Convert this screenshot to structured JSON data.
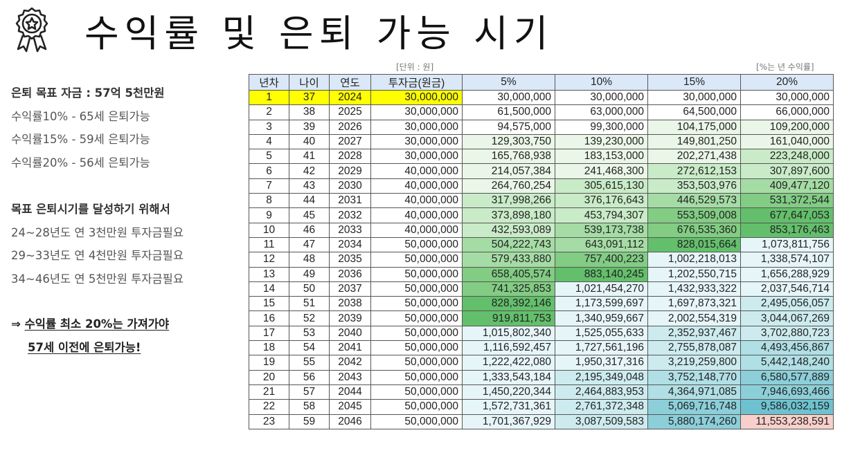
{
  "title": "수익률 및 은퇴 가능 시기",
  "left": {
    "goal": "은퇴 목표 자금 : 57억 5천만원",
    "cases": [
      "수익률10% - 65세 은퇴가능",
      "수익률15% - 59세  은퇴가능",
      "수익률20% - 56세 은퇴가능"
    ],
    "plan_head": "목표 은퇴시기를 달성하기 위해서",
    "plans": [
      "24~28년도  연 3천만원 투자금필요",
      "29~33년도  연 4천만원 투자금필요",
      "34~46년도 연 5천만원 투자금필요"
    ],
    "conclusion_arrow": "⇒ ",
    "conclusion_line1": "수익률 최소 20%는 가져가야",
    "conclusion_line2": "57세 이전에 은퇴가능!"
  },
  "notes": {
    "unit": "[단위 : 원]",
    "rate": "[%는 년 수익률]"
  },
  "table": {
    "headers": [
      "년차",
      "나이",
      "연도",
      "투자금(원금)",
      "5%",
      "10%",
      "15%",
      "20%"
    ],
    "rows": [
      [
        "1",
        "37",
        "2024",
        "30,000,000",
        "30,000,000",
        "30,000,000",
        "30,000,000",
        "30,000,000"
      ],
      [
        "2",
        "38",
        "2025",
        "30,000,000",
        "61,500,000",
        "63,000,000",
        "64,500,000",
        "66,000,000"
      ],
      [
        "3",
        "39",
        "2026",
        "30,000,000",
        "94,575,000",
        "99,300,000",
        "104,175,000",
        "109,200,000"
      ],
      [
        "4",
        "40",
        "2027",
        "30,000,000",
        "129,303,750",
        "139,230,000",
        "149,801,250",
        "161,040,000"
      ],
      [
        "5",
        "41",
        "2028",
        "30,000,000",
        "165,768,938",
        "183,153,000",
        "202,271,438",
        "223,248,000"
      ],
      [
        "6",
        "42",
        "2029",
        "40,000,000",
        "214,057,384",
        "241,468,300",
        "272,612,153",
        "307,897,600"
      ],
      [
        "7",
        "43",
        "2030",
        "40,000,000",
        "264,760,254",
        "305,615,130",
        "353,503,976",
        "409,477,120"
      ],
      [
        "8",
        "44",
        "2031",
        "40,000,000",
        "317,998,266",
        "376,176,643",
        "446,529,573",
        "531,372,544"
      ],
      [
        "9",
        "45",
        "2032",
        "40,000,000",
        "373,898,180",
        "453,794,307",
        "553,509,008",
        "677,647,053"
      ],
      [
        "10",
        "46",
        "2033",
        "40,000,000",
        "432,593,089",
        "539,173,738",
        "676,535,360",
        "853,176,463"
      ],
      [
        "11",
        "47",
        "2034",
        "50,000,000",
        "504,222,743",
        "643,091,112",
        "828,015,664",
        "1,073,811,756"
      ],
      [
        "12",
        "48",
        "2035",
        "50,000,000",
        "579,433,880",
        "757,400,223",
        "1,002,218,013",
        "1,338,574,107"
      ],
      [
        "13",
        "49",
        "2036",
        "50,000,000",
        "658,405,574",
        "883,140,245",
        "1,202,550,715",
        "1,656,288,929"
      ],
      [
        "14",
        "50",
        "2037",
        "50,000,000",
        "741,325,853",
        "1,021,454,270",
        "1,432,933,322",
        "2,037,546,714"
      ],
      [
        "15",
        "51",
        "2038",
        "50,000,000",
        "828,392,146",
        "1,173,599,697",
        "1,697,873,321",
        "2,495,056,057"
      ],
      [
        "16",
        "52",
        "2039",
        "50,000,000",
        "919,811,753",
        "1,340,959,667",
        "2,002,554,319",
        "3,044,067,269"
      ],
      [
        "17",
        "53",
        "2040",
        "50,000,000",
        "1,015,802,340",
        "1,525,055,633",
        "2,352,937,467",
        "3,702,880,723"
      ],
      [
        "18",
        "54",
        "2041",
        "50,000,000",
        "1,116,592,457",
        "1,727,561,196",
        "2,755,878,087",
        "4,493,456,867"
      ],
      [
        "19",
        "55",
        "2042",
        "50,000,000",
        "1,222,422,080",
        "1,950,317,316",
        "3,219,259,800",
        "5,442,148,240"
      ],
      [
        "20",
        "56",
        "2043",
        "50,000,000",
        "1,333,543,184",
        "2,195,349,048",
        "3,752,148,770",
        "6,580,577,889"
      ],
      [
        "21",
        "57",
        "2044",
        "50,000,000",
        "1,450,220,344",
        "2,464,883,953",
        "4,364,971,085",
        "7,946,693,466"
      ],
      [
        "22",
        "58",
        "2045",
        "50,000,000",
        "1,572,731,361",
        "2,761,372,348",
        "5,069,716,748",
        "9,586,032,159"
      ],
      [
        "23",
        "59",
        "2046",
        "50,000,000",
        "1,701,367,929",
        "3,087,509,583",
        "5,880,174,260",
        "11,553,238,591"
      ]
    ],
    "fills": [
      [
        "yellow",
        "yellow",
        "yellow",
        "yellow",
        "",
        "",
        "",
        ""
      ],
      [
        "",
        "",
        "",
        "",
        "",
        "",
        "",
        ""
      ],
      [
        "",
        "",
        "",
        "",
        "",
        "",
        "g1",
        "g1"
      ],
      [
        "",
        "",
        "",
        "",
        "g1",
        "g1",
        "g1",
        "g1"
      ],
      [
        "",
        "",
        "",
        "",
        "g1",
        "g1",
        "g1",
        "g2"
      ],
      [
        "",
        "",
        "",
        "",
        "g1",
        "g1",
        "g2",
        "g2"
      ],
      [
        "",
        "",
        "",
        "",
        "g1",
        "g2",
        "g2",
        "g3"
      ],
      [
        "",
        "",
        "",
        "",
        "g2",
        "g2",
        "g3",
        "g4"
      ],
      [
        "",
        "",
        "",
        "",
        "g2",
        "g2",
        "g4",
        "g5"
      ],
      [
        "",
        "",
        "",
        "",
        "g2",
        "g3",
        "g4",
        "g5"
      ],
      [
        "",
        "",
        "",
        "",
        "g3",
        "g3",
        "g5",
        "t1"
      ],
      [
        "",
        "",
        "",
        "",
        "g3",
        "g4",
        "t1",
        "t1"
      ],
      [
        "",
        "",
        "",
        "",
        "g4",
        "g5",
        "t1",
        "t1"
      ],
      [
        "",
        "",
        "",
        "",
        "g4",
        "t1",
        "t1",
        "t1"
      ],
      [
        "",
        "",
        "",
        "",
        "g5",
        "t1",
        "t1",
        "t2"
      ],
      [
        "",
        "",
        "",
        "",
        "g5",
        "t1",
        "t1",
        "t2"
      ],
      [
        "",
        "",
        "",
        "",
        "t1",
        "t1",
        "t2",
        "t2"
      ],
      [
        "",
        "",
        "",
        "",
        "t1",
        "t1",
        "t2",
        "t3"
      ],
      [
        "",
        "",
        "",
        "",
        "t1",
        "t1",
        "t2",
        "t3"
      ],
      [
        "",
        "",
        "",
        "",
        "t1",
        "t2",
        "t3",
        "t4"
      ],
      [
        "",
        "",
        "",
        "",
        "t1",
        "t2",
        "t3",
        "t4"
      ],
      [
        "",
        "",
        "",
        "",
        "t1",
        "t2",
        "t4",
        "t5"
      ],
      [
        "",
        "",
        "",
        "",
        "t1",
        "t2",
        "t4",
        "pink"
      ]
    ]
  }
}
